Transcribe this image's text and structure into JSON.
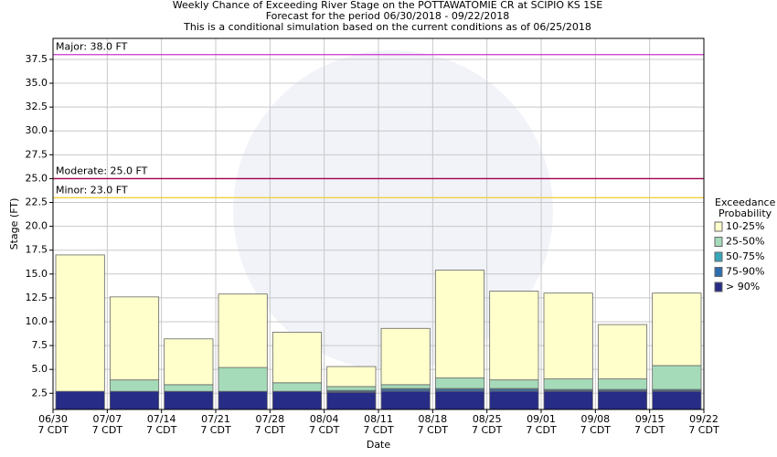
{
  "chart_data": {
    "type": "exceedance_bands",
    "title": [
      "Weekly Chance of Exceeding River Stage on the POTTAWATOMIE CR at SCIPIO KS 1SE",
      "Forecast for the period 06/30/2018 - 09/22/2018",
      "This is a conditional simulation based on the current conditions as of 06/25/2018"
    ],
    "x_label": "Date",
    "y_label": "Stage (FT)",
    "xticks": [
      {
        "date": "06/30",
        "time": "7 CDT"
      },
      {
        "date": "07/07",
        "time": "7 CDT"
      },
      {
        "date": "07/14",
        "time": "7 CDT"
      },
      {
        "date": "07/21",
        "time": "7 CDT"
      },
      {
        "date": "07/28",
        "time": "7 CDT"
      },
      {
        "date": "08/04",
        "time": "7 CDT"
      },
      {
        "date": "08/11",
        "time": "7 CDT"
      },
      {
        "date": "08/18",
        "time": "7 CDT"
      },
      {
        "date": "08/25",
        "time": "7 CDT"
      },
      {
        "date": "09/01",
        "time": "7 CDT"
      },
      {
        "date": "09/08",
        "time": "7 CDT"
      },
      {
        "date": "09/15",
        "time": "7 CDT"
      },
      {
        "date": "09/22",
        "time": "7 CDT"
      }
    ],
    "ylim": [
      0.8,
      39.7
    ],
    "yticks": [
      2.5,
      {
        "value": 5,
        "label": "5.0"
      },
      7.5,
      {
        "value": 10,
        "label": "10.0"
      },
      12.5,
      {
        "value": 15,
        "label": "15.0"
      },
      17.5,
      {
        "value": 20,
        "label": "20.0"
      },
      22.5,
      {
        "value": 25,
        "label": "25.0"
      },
      27.5,
      {
        "value": 30,
        "label": "30.0"
      },
      32.5,
      {
        "value": 35,
        "label": "35.0"
      },
      37.5
    ],
    "grid": true,
    "thresholds": [
      {
        "label": "Major: 38.0 FT",
        "value": 38,
        "color": "#cc33cc"
      },
      {
        "label": "Moderate: 25.0 FT",
        "value": 25,
        "color": "#a0004a"
      },
      {
        "label": "Minor: 23.0 FT",
        "value": 23,
        "color": "#f0d040"
      }
    ],
    "legend_title": [
      "Exceedance",
      "Probability"
    ],
    "series": [
      {
        "name": "> 90%",
        "color": "#272c86",
        "values": [
          2.7,
          2.7,
          2.7,
          2.7,
          2.7,
          2.6,
          2.7,
          2.7,
          2.7,
          2.7,
          2.7,
          2.7
        ]
      },
      {
        "name": "75-90%",
        "color": "#2f6db0",
        "values": [
          2.7,
          2.7,
          2.7,
          2.7,
          2.7,
          2.7,
          2.9,
          2.9,
          2.9,
          2.8,
          2.8,
          2.8
        ]
      },
      {
        "name": "50-75%",
        "color": "#38a6b8",
        "values": [
          2.7,
          2.7,
          2.7,
          2.7,
          2.7,
          2.8,
          3.0,
          3.0,
          3.0,
          2.9,
          2.9,
          2.9
        ]
      },
      {
        "name": "25-50%",
        "color": "#a6dbba",
        "values": [
          2.7,
          3.9,
          3.4,
          5.2,
          3.6,
          3.2,
          3.4,
          4.1,
          3.9,
          4.0,
          4.0,
          5.4
        ]
      },
      {
        "name": "10-25%",
        "color": "#ffffcc",
        "values": [
          17.0,
          12.6,
          8.2,
          12.9,
          8.9,
          5.3,
          9.3,
          15.4,
          13.2,
          13.0,
          9.7,
          13.0
        ]
      }
    ]
  }
}
